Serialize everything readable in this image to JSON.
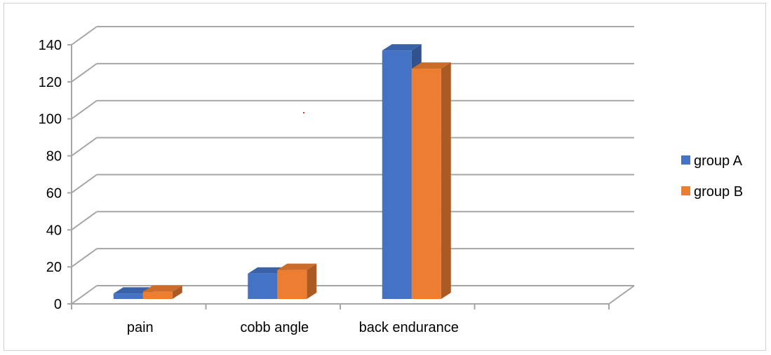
{
  "chart_data": {
    "type": "bar",
    "style": "3d-clustered-column",
    "categories": [
      "pain",
      "cobb angle",
      "back endurance",
      ""
    ],
    "series": [
      {
        "name": "group A",
        "color": "#4472C4",
        "values": [
          3,
          14,
          137,
          null
        ]
      },
      {
        "name": "group B",
        "color": "#ED7D31",
        "values": [
          4,
          16,
          127,
          null
        ]
      }
    ],
    "ylim": [
      0,
      140
    ],
    "yticks": [
      0,
      20,
      40,
      60,
      80,
      100,
      120,
      140
    ],
    "grid": true,
    "legend_position": "right"
  }
}
